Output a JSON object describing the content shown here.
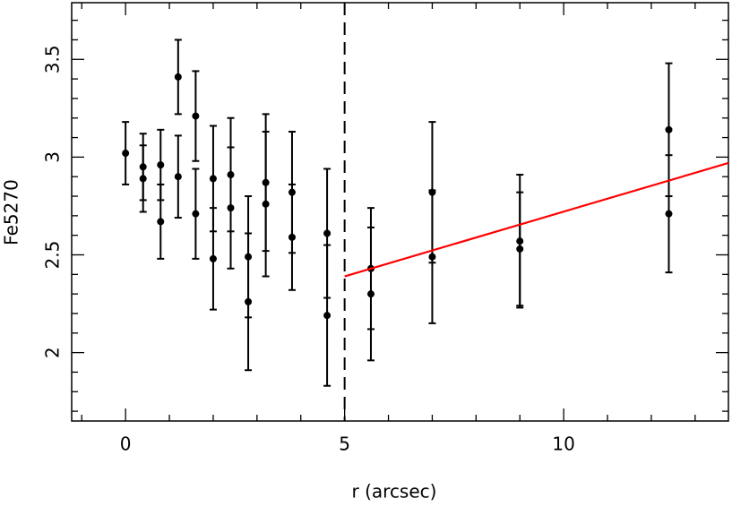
{
  "chart_data": {
    "type": "scatter",
    "xlabel": "r (arcsec)",
    "ylabel": "Fe5270",
    "xlim": [
      -1.23,
      13.76
    ],
    "ylim": [
      1.65,
      3.79
    ],
    "xticks": [
      0,
      5,
      10
    ],
    "yticks": [
      2,
      2.5,
      3,
      3.5
    ],
    "xminorticks": [
      -1,
      1,
      2,
      3,
      4,
      6,
      7,
      8,
      9,
      11,
      12,
      13
    ],
    "yminorticks": [
      1.7,
      1.8,
      1.9,
      2.1,
      2.2,
      2.3,
      2.4,
      2.6,
      2.7,
      2.8,
      2.9,
      3.1,
      3.2,
      3.3,
      3.4,
      3.6,
      3.7
    ],
    "vline": 5,
    "series": [
      {
        "color": "#000000",
        "x": [
          0,
          0.4,
          0.4,
          0.8,
          0.8,
          1.2,
          1.2,
          1.6,
          1.6,
          2.0,
          2.0,
          2.4,
          2.4,
          2.8,
          2.8,
          3.2,
          3.2,
          3.8,
          3.8,
          4.6,
          4.6,
          5.6,
          5.6,
          7.0,
          7.0,
          9.0,
          9.0,
          12.4,
          12.4
        ],
        "values": [
          3.02,
          2.95,
          2.89,
          2.96,
          2.67,
          3.41,
          2.9,
          3.21,
          2.71,
          2.89,
          2.48,
          2.91,
          2.74,
          2.49,
          2.26,
          2.87,
          2.76,
          2.82,
          2.59,
          2.61,
          2.19,
          2.43,
          2.3,
          2.82,
          2.49,
          2.57,
          2.53,
          3.14,
          2.71
        ],
        "errors": [
          0.16,
          0.17,
          0.17,
          0.18,
          0.19,
          0.19,
          0.21,
          0.23,
          0.23,
          0.27,
          0.26,
          0.29,
          0.31,
          0.31,
          0.35,
          0.35,
          0.37,
          0.31,
          0.27,
          0.33,
          0.36,
          0.31,
          0.34,
          0.36,
          0.34,
          0.34,
          0.29,
          0.34,
          0.3
        ]
      }
    ],
    "fit": {
      "color": "#ff0000",
      "x": [
        5,
        13.76
      ],
      "values": [
        2.39,
        2.97
      ]
    }
  }
}
